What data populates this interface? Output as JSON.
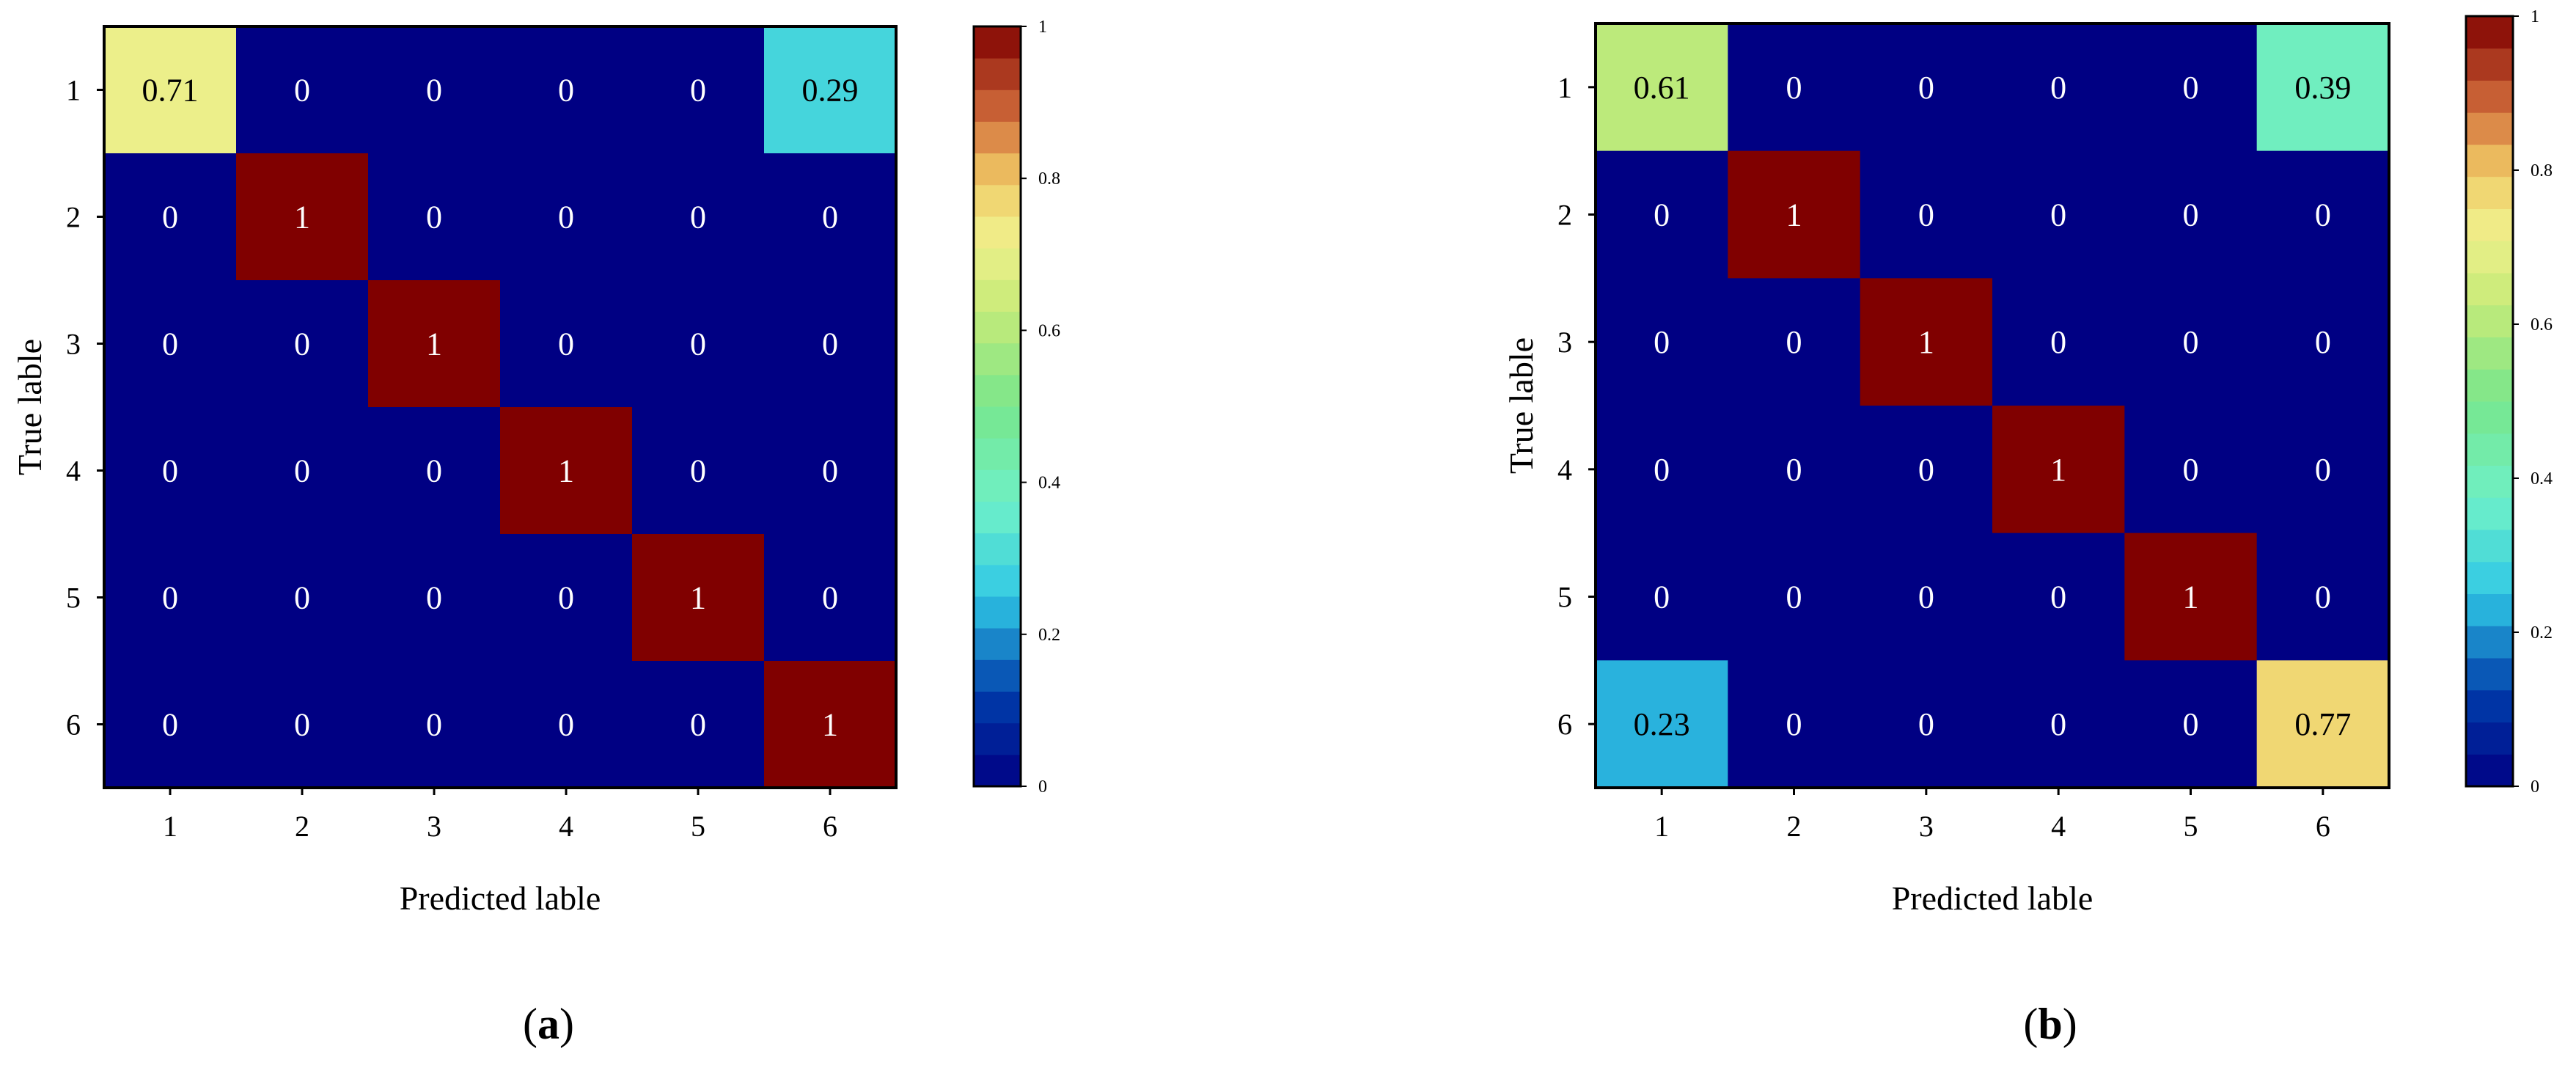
{
  "chart_data": [
    {
      "type": "heatmap",
      "panel_label": "(a)",
      "xlabel": "Predicted lable",
      "ylabel": "True lable",
      "x_ticks": [
        "1",
        "2",
        "3",
        "4",
        "5",
        "6"
      ],
      "y_ticks": [
        "1",
        "2",
        "3",
        "4",
        "5",
        "6"
      ],
      "matrix": [
        [
          0.71,
          0,
          0,
          0,
          0,
          0.29
        ],
        [
          0,
          1,
          0,
          0,
          0,
          0
        ],
        [
          0,
          0,
          1,
          0,
          0,
          0
        ],
        [
          0,
          0,
          0,
          1,
          0,
          0
        ],
        [
          0,
          0,
          0,
          0,
          1,
          0
        ],
        [
          0,
          0,
          0,
          0,
          0,
          1
        ]
      ],
      "value_range": [
        0,
        1
      ],
      "colorbar_ticks": [
        "0",
        "0.2",
        "0.4",
        "0.6",
        "0.8",
        "1"
      ],
      "colormap": "jet"
    },
    {
      "type": "heatmap",
      "panel_label": "(b)",
      "xlabel": "Predicted lable",
      "ylabel": "True lable",
      "x_ticks": [
        "1",
        "2",
        "3",
        "4",
        "5",
        "6"
      ],
      "y_ticks": [
        "1",
        "2",
        "3",
        "4",
        "5",
        "6"
      ],
      "matrix": [
        [
          0.61,
          0,
          0,
          0,
          0,
          0.39
        ],
        [
          0,
          1,
          0,
          0,
          0,
          0
        ],
        [
          0,
          0,
          1,
          0,
          0,
          0
        ],
        [
          0,
          0,
          0,
          1,
          0,
          0
        ],
        [
          0,
          0,
          0,
          0,
          1,
          0
        ],
        [
          0.23,
          0,
          0,
          0,
          0,
          0.77
        ]
      ],
      "value_range": [
        0,
        1
      ],
      "colorbar_ticks": [
        "0",
        "0.2",
        "0.4",
        "0.6",
        "0.8",
        "1"
      ],
      "colormap": "jet"
    }
  ]
}
